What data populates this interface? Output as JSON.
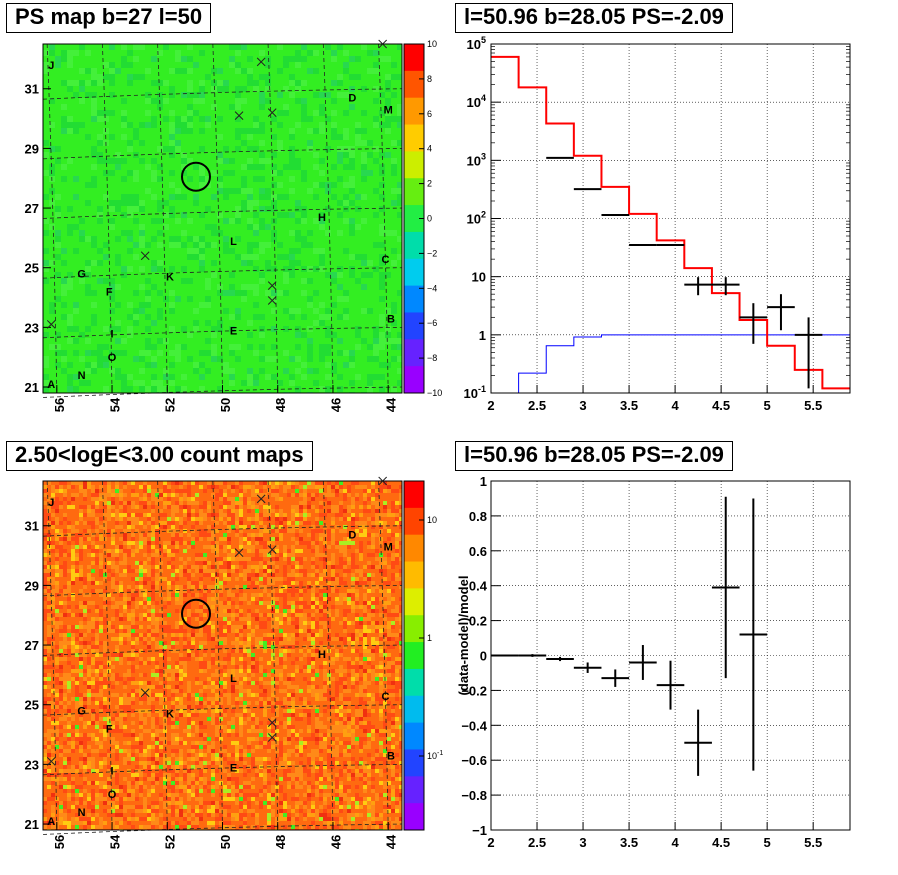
{
  "colors": {
    "model_red": "#ff0000",
    "background_blue": "#0000ff",
    "data_black": "#000000",
    "map_green": "#33ee22",
    "map_orange": "#ff5a10"
  },
  "panels": {
    "ps_map": {
      "title": "PS map b=27 l=50"
    },
    "count_map": {
      "title": "2.50<logE<3.00 count maps"
    },
    "spectrum": {
      "title": "l=50.96 b=28.05 PS=-2.09"
    },
    "residual": {
      "title": "l=50.96 b=28.05 PS=-2.09"
    }
  },
  "chart_data": [
    {
      "type": "heatmap",
      "name": "ps_map",
      "title": "PS map b=27 l=50",
      "x_ticks": [
        "56",
        "54",
        "52",
        "50",
        "48",
        "46",
        "44"
      ],
      "y_ticks": [
        "31",
        "29",
        "27",
        "25",
        "23",
        "21"
      ],
      "xlim": [
        56.5,
        43.5
      ],
      "ylim": [
        20.8,
        32.5
      ],
      "colorbar_ticks": [
        "10",
        "8",
        "6",
        "4",
        "2",
        "0",
        "−2",
        "−4",
        "−6",
        "−8",
        "−10"
      ],
      "colorbar_range": [
        -10,
        10
      ],
      "marked_source": {
        "l": 50.96,
        "b": 28.05
      },
      "source_labels": [
        {
          "label": "J",
          "l": 56.2,
          "b": 31.8
        },
        {
          "label": "D",
          "l": 45.3,
          "b": 30.7
        },
        {
          "label": "M",
          "l": 44.0,
          "b": 30.3
        },
        {
          "label": "H",
          "l": 46.4,
          "b": 26.7
        },
        {
          "label": "L",
          "l": 49.6,
          "b": 25.9
        },
        {
          "label": "C",
          "l": 44.1,
          "b": 25.3
        },
        {
          "label": "G",
          "l": 55.1,
          "b": 24.8
        },
        {
          "label": "K",
          "l": 51.9,
          "b": 24.7
        },
        {
          "label": "F",
          "l": 54.1,
          "b": 24.2
        },
        {
          "label": "B",
          "l": 43.9,
          "b": 23.3
        },
        {
          "label": "E",
          "l": 49.6,
          "b": 22.9
        },
        {
          "label": "I",
          "l": 54.0,
          "b": 22.8
        },
        {
          "label": "O",
          "l": 54.0,
          "b": 22.0
        },
        {
          "label": "N",
          "l": 55.1,
          "b": 21.4
        },
        {
          "label": "A",
          "l": 56.2,
          "b": 21.1
        }
      ],
      "crosses": [
        {
          "l": 44.2,
          "b": 32.5
        },
        {
          "l": 48.6,
          "b": 31.9
        },
        {
          "l": 49.4,
          "b": 30.1
        },
        {
          "l": 48.2,
          "b": 30.2
        },
        {
          "l": 52.8,
          "b": 25.4
        },
        {
          "l": 48.2,
          "b": 24.4
        },
        {
          "l": 48.2,
          "b": 23.9
        },
        {
          "l": 56.2,
          "b": 23.1
        }
      ]
    },
    {
      "type": "heatmap",
      "name": "count_map",
      "title": "2.50<logE<3.00 count maps",
      "x_ticks": [
        "56",
        "54",
        "52",
        "50",
        "48",
        "46",
        "44"
      ],
      "y_ticks": [
        "31",
        "29",
        "27",
        "25",
        "23",
        "21"
      ],
      "xlim": [
        56.5,
        43.5
      ],
      "ylim": [
        20.8,
        32.5
      ],
      "colorbar_ticks": [
        "10",
        "1",
        "10^-1"
      ],
      "colorbar_scale": "log",
      "marked_source": {
        "l": 50.96,
        "b": 28.05
      }
    },
    {
      "type": "line",
      "name": "spectrum",
      "title": "l=50.96 b=28.05 PS=-2.09",
      "xlim": [
        2,
        5.9
      ],
      "ylim": [
        0.1,
        100000
      ],
      "yscale": "log",
      "grid": true,
      "x_ticks": [
        "2",
        "2.5",
        "3",
        "3.5",
        "4",
        "4.5",
        "5",
        "5.5"
      ],
      "y_ticks": [
        "10^-1",
        "1",
        "10",
        "10^2",
        "10^3",
        "10^4",
        "10^5"
      ],
      "bin_edges": [
        2.0,
        2.3,
        2.6,
        2.9,
        3.2,
        3.5,
        3.8,
        4.1,
        4.4,
        4.7,
        5.0,
        5.3,
        5.6,
        5.9
      ],
      "series": [
        {
          "values": [
            60000,
            18000,
            4300,
            1200,
            350,
            120,
            42,
            14,
            5.2,
            1.8,
            0.65,
            0.25,
            0.12
          ],
          "color": "#ff0000",
          "style": "step"
        },
        {
          "values": [
            0.1,
            0.22,
            0.65,
            0.92,
            1.0,
            1.0,
            1.0,
            1.0,
            1.0,
            1.0,
            1.0,
            1.0,
            1.0
          ],
          "color": "#0000ff",
          "style": "step"
        },
        {
          "x": [
            2.75,
            3.05,
            3.35,
            3.65,
            3.95,
            4.25,
            4.55,
            4.85,
            5.15,
            5.45
          ],
          "values": [
            1100,
            320,
            115,
            35,
            35,
            7.3,
            7.3,
            2.0,
            3.0,
            1.0
          ],
          "err_lo": [
            0,
            0,
            0,
            0,
            0,
            2.5,
            2.5,
            1.3,
            1.8,
            0.9
          ],
          "err_hi": [
            0,
            0,
            0,
            0,
            0,
            2.5,
            2.5,
            1.5,
            2.0,
            1.0
          ],
          "color": "#000000",
          "style": "errorbar"
        }
      ]
    },
    {
      "type": "scatter",
      "name": "residual",
      "title": "l=50.96 b=28.05 PS=-2.09",
      "ylabel": "(data-model)/model",
      "xlim": [
        2,
        5.9
      ],
      "ylim": [
        -1,
        1
      ],
      "grid": true,
      "x_ticks": [
        "2",
        "2.5",
        "3",
        "3.5",
        "4",
        "4.5",
        "5",
        "5.5"
      ],
      "y_ticks": [
        "−1",
        "−0.8",
        "−0.6",
        "−0.4",
        "−0.2",
        "0",
        "0.2",
        "0.4",
        "0.6",
        "0.8",
        "1"
      ],
      "series": [
        {
          "x": [
            2.15,
            2.45,
            2.75,
            3.05,
            3.35,
            3.65,
            3.95,
            4.25,
            4.55,
            4.85
          ],
          "values": [
            0.0,
            0.0,
            -0.02,
            -0.07,
            -0.13,
            -0.04,
            -0.17,
            -0.5,
            0.39,
            0.12
          ],
          "err": [
            0.005,
            0.008,
            0.012,
            0.03,
            0.05,
            0.1,
            0.14,
            0.19,
            0.52,
            0.78
          ],
          "xerr": 0.15,
          "color": "#000000",
          "style": "errorbar"
        }
      ]
    }
  ]
}
